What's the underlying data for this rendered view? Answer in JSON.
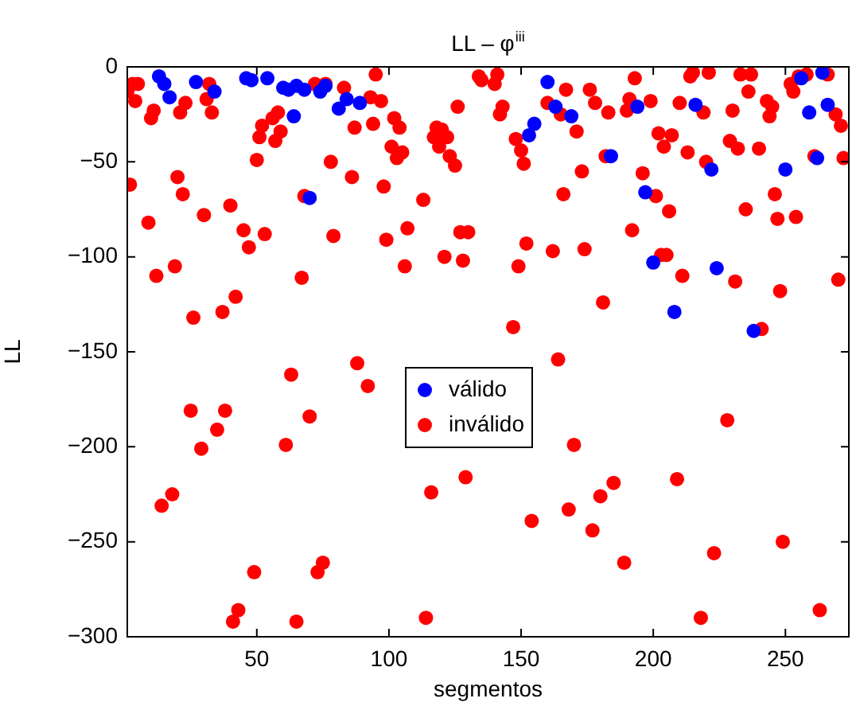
{
  "chart_data": {
    "type": "scatter",
    "title": "LL – φ$^{iii}$",
    "xlabel": "segmentos",
    "ylabel": "LL",
    "xlim": [
      1,
      274
    ],
    "xticks": [
      50,
      100,
      150,
      200,
      250
    ],
    "ylim": [
      -300,
      0
    ],
    "yticks": [
      -300,
      -250,
      -200,
      -150,
      -100,
      -50,
      0
    ],
    "grid": false,
    "legend": "center",
    "marker": "circle",
    "series": [
      {
        "name": "válido",
        "color": "#0000ff",
        "x": [
          13,
          15,
          17,
          27,
          34,
          46,
          48,
          54,
          60,
          62,
          65,
          68,
          74,
          64,
          70,
          76,
          84,
          81,
          89,
          160,
          163,
          169,
          155,
          153,
          194,
          216,
          256,
          264,
          266,
          259,
          184,
          222,
          250,
          262,
          197,
          200,
          224,
          208,
          238
        ],
        "values": [
          -5,
          -9,
          -16,
          -8,
          -13,
          -6,
          -7,
          -6,
          -11,
          -12,
          -10,
          -12,
          -13,
          -26,
          -69,
          -10,
          -17,
          -22,
          -19,
          -8,
          -21,
          -26,
          -30,
          -36,
          -21,
          -20,
          -6,
          -3,
          -20,
          -24,
          -47,
          -54,
          -54,
          -48,
          -66,
          -103,
          -106,
          -129,
          -139
        ]
      },
      {
        "name": "inválido",
        "color": "#ff0000",
        "x": [
          1,
          3,
          5,
          4,
          11,
          10,
          21,
          23,
          32,
          31,
          33,
          2,
          9,
          12,
          19,
          20,
          22,
          30,
          40,
          45,
          47,
          53,
          50,
          51,
          52,
          56,
          58,
          59,
          57,
          67,
          68,
          72,
          76,
          78,
          79,
          83,
          95,
          93,
          97,
          87,
          94,
          102,
          104,
          101,
          105,
          103,
          86,
          98,
          113,
          99,
          107,
          106,
          121,
          128,
          127,
          130,
          126,
          118,
          120,
          117,
          122,
          119,
          123,
          125,
          134,
          135,
          141,
          140,
          143,
          142,
          148,
          150,
          151,
          167,
          160,
          165,
          171,
          173,
          166,
          152,
          162,
          149,
          174,
          176,
          178,
          183,
          191,
          190,
          193,
          199,
          210,
          214,
          215,
          221,
          219,
          233,
          237,
          236,
          230,
          243,
          245,
          244,
          252,
          253,
          255,
          258,
          266,
          269,
          271,
          202,
          207,
          204,
          213,
          229,
          232,
          240,
          220,
          261,
          272,
          182,
          196,
          201,
          206,
          192,
          203,
          205,
          211,
          231,
          235,
          246,
          247,
          254,
          270,
          248,
          181,
          147,
          164,
          241,
          170,
          228,
          129,
          154,
          168,
          180,
          185,
          177,
          209,
          189,
          223,
          249,
          218,
          263,
          42,
          37,
          26,
          63,
          88,
          92,
          25,
          38,
          35,
          29,
          70,
          61,
          14,
          18,
          116,
          49,
          73,
          75,
          43,
          41,
          65,
          114
        ],
        "values": [
          -13,
          -9,
          -9,
          -18,
          -23,
          -27,
          -24,
          -19,
          -9,
          -17,
          -24,
          -62,
          -82,
          -110,
          -105,
          -58,
          -67,
          -78,
          -73,
          -86,
          -95,
          -88,
          -49,
          -37,
          -31,
          -27,
          -24,
          -34,
          -39,
          -111,
          -68,
          -9,
          -9,
          -50,
          -89,
          -11,
          -4,
          -16,
          -18,
          -32,
          -30,
          -27,
          -32,
          -42,
          -45,
          -48,
          -58,
          -63,
          -70,
          -91,
          -85,
          -105,
          -100,
          -102,
          -87,
          -87,
          -21,
          -32,
          -33,
          -37,
          -37,
          -42,
          -47,
          -52,
          -5,
          -7,
          -4,
          -9,
          -21,
          -25,
          -38,
          -44,
          -51,
          -12,
          -19,
          -25,
          -34,
          -55,
          -67,
          -93,
          -97,
          -105,
          -96,
          -12,
          -19,
          -24,
          -17,
          -23,
          -6,
          -18,
          -19,
          -5,
          -3,
          -3,
          -24,
          -4,
          -4,
          -13,
          -23,
          -18,
          -21,
          -26,
          -9,
          -13,
          -5,
          -4,
          -4,
          -25,
          -31,
          -35,
          -36,
          -42,
          -45,
          -39,
          -43,
          -43,
          -50,
          -47,
          -48,
          -47,
          -56,
          -68,
          -76,
          -86,
          -99,
          -99,
          -110,
          -113,
          -75,
          -67,
          -80,
          -79,
          -112,
          -118,
          -124,
          -137,
          -154,
          -138,
          -199,
          -186,
          -216,
          -239,
          -233,
          -226,
          -219,
          -244,
          -217,
          -261,
          -256,
          -250,
          -290,
          -286,
          -121,
          -129,
          -132,
          -162,
          -156,
          -168,
          -181,
          -181,
          -191,
          -201,
          -184,
          -199,
          -231,
          -225,
          -224,
          -266,
          -266,
          -261,
          -286,
          -292,
          -292,
          -290
        ]
      }
    ]
  }
}
